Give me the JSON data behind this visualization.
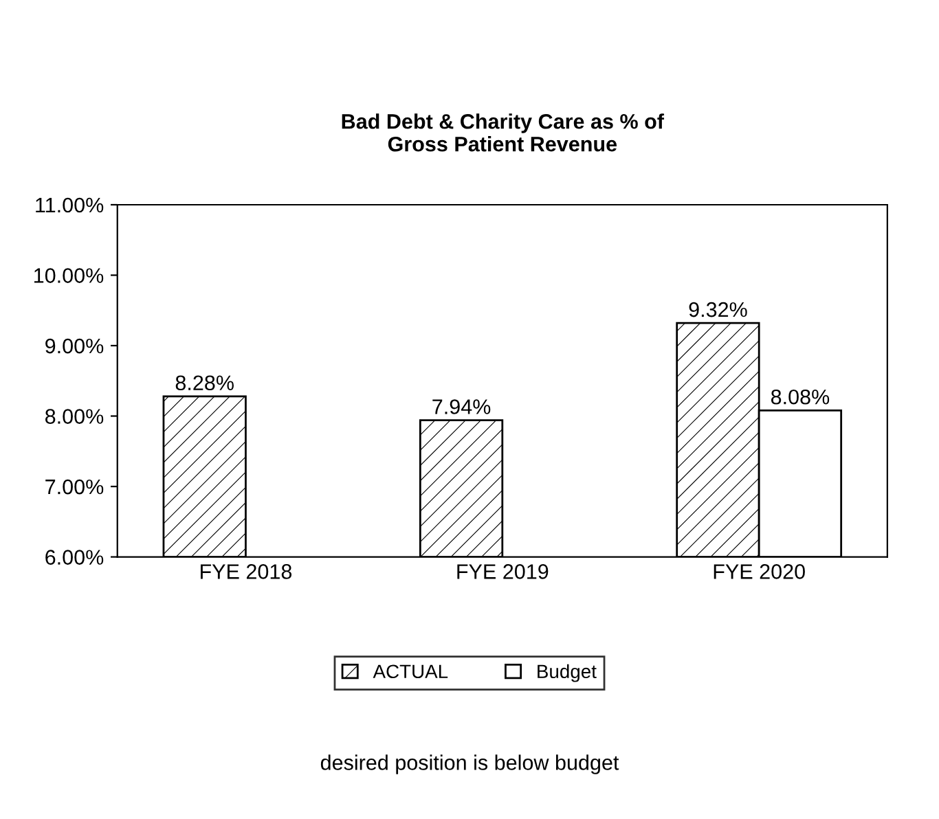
{
  "chart_data": {
    "type": "bar",
    "title": "Bad Debt & Charity Care as % of\nGross Patient Revenue",
    "categories": [
      "FYE 2018",
      "FYE 2019",
      "FYE 2020"
    ],
    "series": [
      {
        "name": "ACTUAL",
        "color": "#000000",
        "values": [
          8.28,
          7.94,
          9.32
        ],
        "value_labels": [
          "8.28%",
          "7.94%",
          "9.32%"
        ]
      },
      {
        "name": "Budget",
        "color": "#ffffff",
        "values": [
          null,
          null,
          8.08
        ],
        "value_labels": [
          null,
          null,
          "8.08%"
        ]
      }
    ],
    "ylim": [
      6,
      11
    ],
    "yticks": [
      {
        "value": 6,
        "label": "6.00%"
      },
      {
        "value": 7,
        "label": "7.00%"
      },
      {
        "value": 8,
        "label": "8.00%"
      },
      {
        "value": 9,
        "label": "9.00%"
      },
      {
        "value": 10,
        "label": "10.00%"
      },
      {
        "value": 11,
        "label": "11.00%"
      }
    ],
    "grid": false,
    "legend": "bottom",
    "annotations": [
      "desired position is below budget"
    ]
  }
}
